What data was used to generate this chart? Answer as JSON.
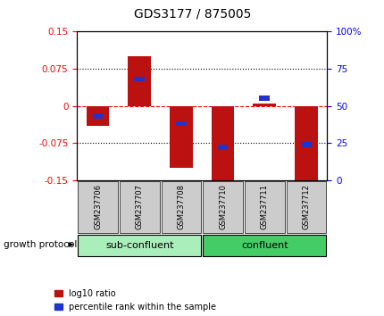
{
  "title": "GDS3177 / 875005",
  "samples": [
    "GSM237706",
    "GSM237707",
    "GSM237708",
    "GSM237710",
    "GSM237711",
    "GSM237712"
  ],
  "log10_ratio": [
    -0.04,
    0.1,
    -0.125,
    -0.155,
    0.005,
    -0.155
  ],
  "percentile_rank": [
    43,
    68,
    38,
    22,
    55,
    24
  ],
  "ylim_left": [
    -0.15,
    0.15
  ],
  "ylim_right": [
    0,
    100
  ],
  "yticks_left": [
    -0.15,
    -0.075,
    0,
    0.075,
    0.15
  ],
  "yticks_right": [
    0,
    25,
    50,
    75,
    100
  ],
  "ytick_labels_left": [
    "-0.15",
    "-0.075",
    "0",
    "0.075",
    "0.15"
  ],
  "ytick_labels_right": [
    "0",
    "25",
    "50",
    "75",
    "100%"
  ],
  "hlines_dotted": [
    -0.075,
    0.075
  ],
  "hline_dashed": 0,
  "bar_color": "#bb1111",
  "blue_color": "#2233cc",
  "label_box_color": "#cccccc",
  "sub_confluent_color": "#aaeebb",
  "confluent_color": "#44cc66",
  "legend_items": [
    "log10 ratio",
    "percentile rank within the sample"
  ],
  "growth_protocol_label": "growth protocol",
  "bar_width": 0.55,
  "blue_bar_width": 0.25,
  "blue_bar_height": 0.01,
  "title_fontsize": 10,
  "tick_fontsize": 7.5,
  "label_fontsize": 6,
  "group_fontsize": 8,
  "legend_fontsize": 7
}
